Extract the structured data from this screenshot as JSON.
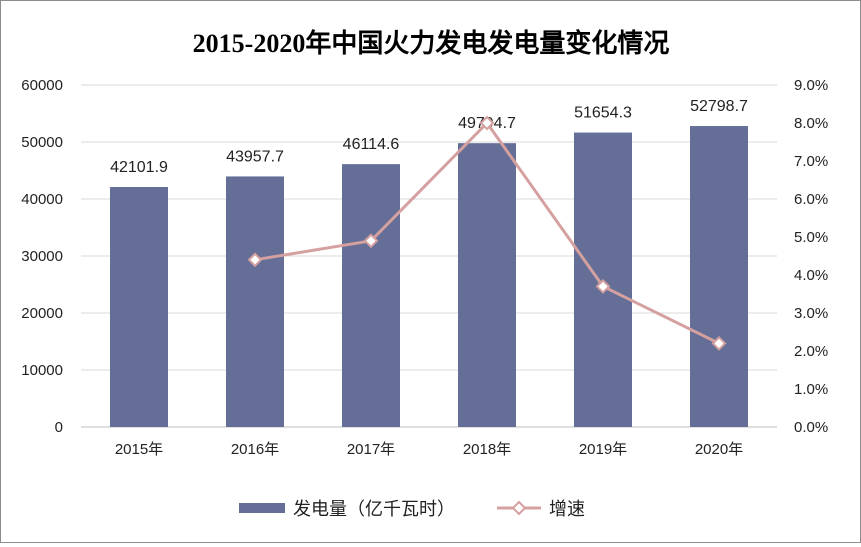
{
  "chart_data": {
    "type": "bar",
    "title": "2015-2020年中国火力发电发电量变化情况",
    "categories": [
      "2015年",
      "2016年",
      "2017年",
      "2018年",
      "2019年",
      "2020年"
    ],
    "series": [
      {
        "name": "发电量（亿千瓦时）",
        "type": "bar",
        "axis": "left",
        "color": "#646e96",
        "values": [
          42101.9,
          43957.7,
          46114.6,
          49794.7,
          51654.3,
          52798.7
        ],
        "labels": [
          "42101.9",
          "43957.7",
          "46114.6",
          "49794.7",
          "51654.3",
          "52798.7"
        ]
      },
      {
        "name": "增速",
        "type": "line",
        "axis": "right",
        "color": "#d4a0a0",
        "values": [
          null,
          4.4,
          4.9,
          8.0,
          3.7,
          2.2
        ]
      }
    ],
    "y_left": {
      "min": 0,
      "max": 60000,
      "ticks": [
        "0",
        "10000",
        "20000",
        "30000",
        "40000",
        "50000",
        "60000"
      ]
    },
    "y_right": {
      "min": 0,
      "max": 9,
      "ticks": [
        "0.0%",
        "1.0%",
        "2.0%",
        "3.0%",
        "4.0%",
        "5.0%",
        "6.0%",
        "7.0%",
        "8.0%",
        "9.0%"
      ]
    },
    "grid": true,
    "legend_position": "bottom"
  }
}
